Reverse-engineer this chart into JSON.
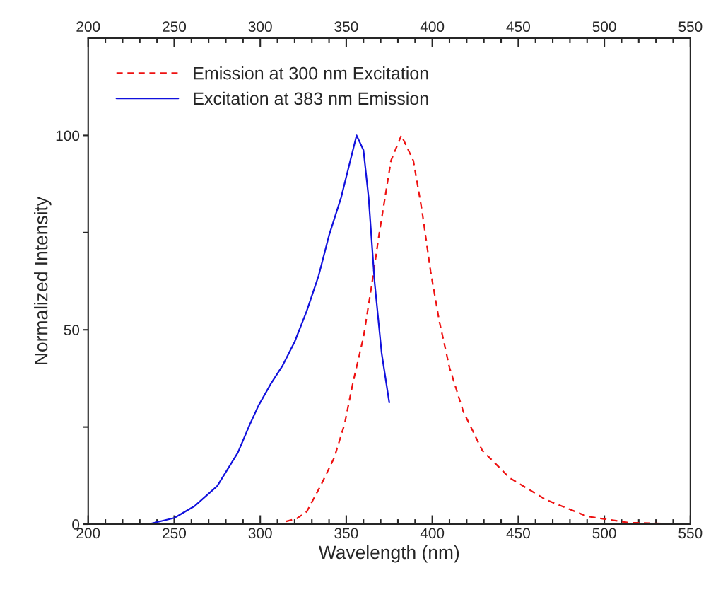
{
  "chart_data": {
    "type": "line",
    "xlabel": "Wavelength (nm)",
    "ylabel": "Normalized Intensity",
    "xlim": [
      200,
      550
    ],
    "ylim": [
      0,
      125
    ],
    "xticks": [
      200,
      {
        "value": 210,
        "label": null
      },
      {
        "value": 220,
        "label": null
      },
      {
        "value": 230,
        "label": null
      },
      {
        "value": 240,
        "label": null
      },
      250,
      {
        "value": 260,
        "label": null
      },
      {
        "value": 270,
        "label": null
      },
      {
        "value": 280,
        "label": null
      },
      {
        "value": 290,
        "label": null
      },
      300,
      {
        "value": 310,
        "label": null
      },
      {
        "value": 320,
        "label": null
      },
      {
        "value": 330,
        "label": null
      },
      {
        "value": 340,
        "label": null
      },
      350,
      {
        "value": 360,
        "label": null
      },
      {
        "value": 370,
        "label": null
      },
      {
        "value": 380,
        "label": null
      },
      {
        "value": 390,
        "label": null
      },
      400,
      {
        "value": 410,
        "label": null
      },
      {
        "value": 420,
        "label": null
      },
      {
        "value": 430,
        "label": null
      },
      {
        "value": 440,
        "label": null
      },
      450,
      {
        "value": 460,
        "label": null
      },
      {
        "value": 470,
        "label": null
      },
      {
        "value": 480,
        "label": null
      },
      {
        "value": 490,
        "label": null
      },
      500,
      {
        "value": 510,
        "label": null
      },
      {
        "value": 520,
        "label": null
      },
      {
        "value": 530,
        "label": null
      },
      {
        "value": 540,
        "label": null
      },
      550
    ],
    "x2lim": [
      200,
      550
    ],
    "x2ticks": [
      200,
      {
        "value": 210,
        "label": null
      },
      {
        "value": 220,
        "label": null
      },
      {
        "value": 230,
        "label": null
      },
      {
        "value": 240,
        "label": null
      },
      250,
      {
        "value": 260,
        "label": null
      },
      {
        "value": 270,
        "label": null
      },
      {
        "value": 280,
        "label": null
      },
      {
        "value": 290,
        "label": null
      },
      300,
      {
        "value": 310,
        "label": null
      },
      {
        "value": 320,
        "label": null
      },
      {
        "value": 330,
        "label": null
      },
      {
        "value": 340,
        "label": null
      },
      350,
      {
        "value": 360,
        "label": null
      },
      {
        "value": 370,
        "label": null
      },
      {
        "value": 380,
        "label": null
      },
      {
        "value": 390,
        "label": null
      },
      400,
      {
        "value": 410,
        "label": null
      },
      {
        "value": 420,
        "label": null
      },
      {
        "value": 430,
        "label": null
      },
      {
        "value": 440,
        "label": null
      },
      450,
      {
        "value": 460,
        "label": null
      },
      {
        "value": 470,
        "label": null
      },
      {
        "value": 480,
        "label": null
      },
      {
        "value": 490,
        "label": null
      },
      500,
      {
        "value": 510,
        "label": null
      },
      {
        "value": 520,
        "label": null
      },
      {
        "value": 530,
        "label": null
      },
      {
        "value": 540,
        "label": null
      },
      550
    ],
    "yticks": [
      0,
      {
        "value": 25,
        "label": null
      },
      50,
      {
        "value": 75,
        "label": null
      },
      100
    ],
    "grid": false,
    "legend": "top left",
    "marker": "none",
    "series": [
      {
        "name": "Emission at 300 nm Excitation",
        "color": "#ee1111",
        "line_style": "dashed",
        "x": [
          315,
          321,
          327,
          335,
          343,
          349,
          354,
          360,
          365,
          369,
          376,
          382,
          389,
          394,
          399,
          404,
          410,
          418,
          429,
          445,
          466,
          490,
          514,
          550
        ],
        "values": [
          0.7,
          1.4,
          3.2,
          9.8,
          17.1,
          25.7,
          36.6,
          48.1,
          62.1,
          74.3,
          93.5,
          100,
          93.5,
          80.7,
          65.1,
          52.4,
          40.3,
          29.0,
          19.0,
          11.9,
          6.3,
          2.0,
          0.4,
          0
        ]
      },
      {
        "name": "Excitation at 383 nm Emission",
        "color": "#1111dd",
        "line_style": "solid",
        "x": [
          200,
          235,
          250,
          262,
          275,
          287,
          294,
          299,
          306,
          313,
          320,
          327,
          334,
          340,
          347,
          356,
          360,
          363,
          366.5,
          370.6,
          375
        ],
        "values": [
          0,
          0,
          1.6,
          4.7,
          9.8,
          18.4,
          25.7,
          30.5,
          36.0,
          40.8,
          46.9,
          54.8,
          64.0,
          74.3,
          84.0,
          100,
          96.2,
          84,
          62.1,
          43.9,
          31.3
        ]
      }
    ]
  }
}
